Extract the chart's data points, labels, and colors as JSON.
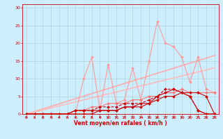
{
  "background_color": "#cceeff",
  "grid_color": "#aacccc",
  "xlabel": "Vent moyen/en rafales ( km/h )",
  "xlim": [
    -0.5,
    23.5
  ],
  "ylim": [
    0,
    31
  ],
  "xticks": [
    0,
    1,
    2,
    3,
    4,
    5,
    6,
    7,
    8,
    9,
    10,
    11,
    12,
    13,
    14,
    15,
    16,
    17,
    18,
    19,
    20,
    21,
    22,
    23
  ],
  "yticks": [
    0,
    5,
    10,
    15,
    20,
    25,
    30
  ],
  "series": [
    {
      "x": [
        0,
        1,
        2,
        3,
        4,
        5,
        6,
        7,
        8,
        9,
        10,
        11,
        12,
        13,
        14,
        15,
        16,
        17,
        18,
        19,
        20,
        21,
        22,
        23
      ],
      "y": [
        0,
        0,
        0,
        0,
        0,
        0,
        0,
        10,
        16,
        1,
        14,
        3,
        4,
        13,
        4,
        15,
        26,
        20,
        19,
        16,
        9,
        16,
        7,
        6
      ],
      "color": "#ff9999",
      "lw": 0.8,
      "marker": "D",
      "ms": 2.0,
      "linestyle": "-",
      "zorder": 2
    },
    {
      "x": [
        0,
        23
      ],
      "y": [
        0,
        16.5
      ],
      "color": "#ffaaaa",
      "lw": 1.2,
      "marker": null,
      "ms": 0,
      "linestyle": "-",
      "zorder": 1
    },
    {
      "x": [
        0,
        23
      ],
      "y": [
        0,
        13
      ],
      "color": "#ffbbbb",
      "lw": 1.2,
      "marker": null,
      "ms": 0,
      "linestyle": "-",
      "zorder": 1
    },
    {
      "x": [
        0,
        1,
        2,
        3,
        4,
        5,
        6,
        7,
        8,
        9,
        10,
        11,
        12,
        13,
        14,
        15,
        16,
        17,
        18,
        19,
        20,
        21,
        22,
        23
      ],
      "y": [
        0,
        0,
        0,
        0,
        0,
        0,
        1,
        1,
        2,
        2,
        3,
        3,
        3,
        4,
        4,
        5,
        5,
        6,
        6,
        7,
        6,
        6,
        6,
        6
      ],
      "color": "#ff7777",
      "lw": 0.8,
      "marker": "D",
      "ms": 2.0,
      "linestyle": "-",
      "zorder": 3
    },
    {
      "x": [
        0,
        1,
        2,
        3,
        4,
        5,
        6,
        7,
        8,
        9,
        10,
        11,
        12,
        13,
        14,
        15,
        16,
        17,
        18,
        19,
        20,
        21,
        22,
        23
      ],
      "y": [
        0,
        0,
        0,
        0,
        0,
        0,
        1,
        1,
        1,
        2,
        2,
        2,
        3,
        3,
        3,
        4,
        5,
        7,
        7,
        6,
        5,
        1,
        0,
        0
      ],
      "color": "#cc0000",
      "lw": 0.8,
      "marker": "D",
      "ms": 2.0,
      "linestyle": "--",
      "zorder": 4
    },
    {
      "x": [
        0,
        1,
        2,
        3,
        4,
        5,
        6,
        7,
        8,
        9,
        10,
        11,
        12,
        13,
        14,
        15,
        16,
        17,
        18,
        19,
        20,
        21,
        22,
        23
      ],
      "y": [
        0,
        0,
        0,
        0,
        0,
        0,
        1,
        1,
        1,
        1,
        1,
        1,
        2,
        2,
        2,
        3,
        5,
        6,
        7,
        6,
        5,
        1,
        0,
        0
      ],
      "color": "#cc0000",
      "lw": 0.8,
      "marker": "D",
      "ms": 2.0,
      "linestyle": "-",
      "zorder": 5
    },
    {
      "x": [
        0,
        1,
        2,
        3,
        4,
        5,
        6,
        7,
        8,
        9,
        10,
        11,
        12,
        13,
        14,
        15,
        16,
        17,
        18,
        19,
        20,
        21,
        22,
        23
      ],
      "y": [
        0,
        0,
        0,
        0,
        0,
        0,
        0,
        0,
        0,
        1,
        1,
        1,
        2,
        2,
        3,
        3,
        4,
        5,
        5,
        6,
        6,
        6,
        5,
        0
      ],
      "color": "#cc0000",
      "lw": 0.8,
      "marker": "D",
      "ms": 2.0,
      "linestyle": "-",
      "zorder": 5
    }
  ]
}
